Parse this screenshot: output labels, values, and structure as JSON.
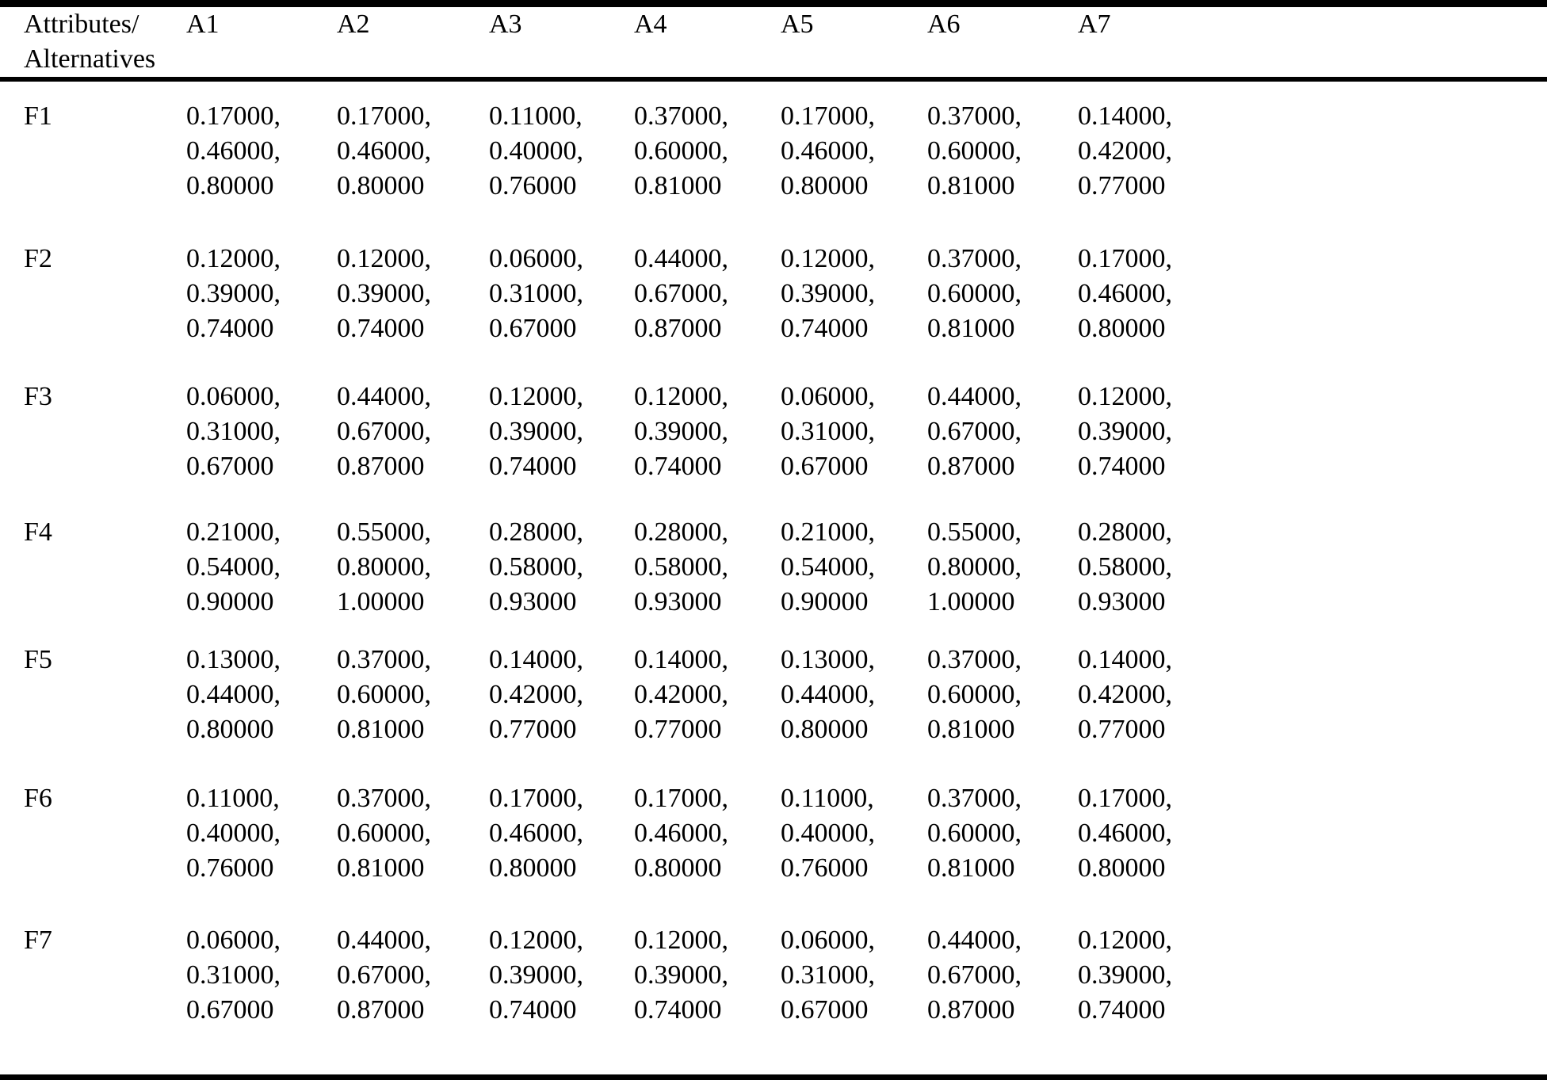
{
  "table": {
    "corner_label": "Attributes/\nAlternatives",
    "columns": [
      "A1",
      "A2",
      "A3",
      "A4",
      "A5",
      "A6",
      "A7"
    ],
    "rows": [
      {
        "label": "F1",
        "cells": [
          [
            "0.17000,",
            "0.46000,",
            "0.80000"
          ],
          [
            "0.17000,",
            "0.46000,",
            "0.80000"
          ],
          [
            "0.11000,",
            "0.40000,",
            "0.76000"
          ],
          [
            "0.37000,",
            "0.60000,",
            "0.81000"
          ],
          [
            "0.17000,",
            "0.46000,",
            "0.80000"
          ],
          [
            "0.37000,",
            "0.60000,",
            "0.81000"
          ],
          [
            "0.14000,",
            "0.42000,",
            "0.77000"
          ]
        ]
      },
      {
        "label": "F2",
        "cells": [
          [
            "0.12000,",
            "0.39000,",
            "0.74000"
          ],
          [
            "0.12000,",
            "0.39000,",
            "0.74000"
          ],
          [
            "0.06000,",
            "0.31000,",
            "0.67000"
          ],
          [
            "0.44000,",
            "0.67000,",
            "0.87000"
          ],
          [
            "0.12000,",
            "0.39000,",
            "0.74000"
          ],
          [
            "0.37000,",
            "0.60000,",
            "0.81000"
          ],
          [
            "0.17000,",
            "0.46000,",
            "0.80000"
          ]
        ]
      },
      {
        "label": "F3",
        "cells": [
          [
            "0.06000,",
            "0.31000,",
            "0.67000"
          ],
          [
            "0.44000,",
            "0.67000,",
            "0.87000"
          ],
          [
            "0.12000,",
            "0.39000,",
            "0.74000"
          ],
          [
            "0.12000,",
            "0.39000,",
            "0.74000"
          ],
          [
            "0.06000,",
            "0.31000,",
            "0.67000"
          ],
          [
            "0.44000,",
            "0.67000,",
            "0.87000"
          ],
          [
            "0.12000,",
            "0.39000,",
            "0.74000"
          ]
        ]
      },
      {
        "label": "F4",
        "cells": [
          [
            "0.21000,",
            "0.54000,",
            "0.90000"
          ],
          [
            "0.55000,",
            "0.80000,",
            "1.00000"
          ],
          [
            "0.28000,",
            "0.58000,",
            "0.93000"
          ],
          [
            "0.28000,",
            "0.58000,",
            "0.93000"
          ],
          [
            "0.21000,",
            "0.54000,",
            "0.90000"
          ],
          [
            "0.55000,",
            "0.80000,",
            "1.00000"
          ],
          [
            "0.28000,",
            "0.58000,",
            "0.93000"
          ]
        ]
      },
      {
        "label": "F5",
        "cells": [
          [
            "0.13000,",
            "0.44000,",
            "0.80000"
          ],
          [
            "0.37000,",
            "0.60000,",
            "0.81000"
          ],
          [
            "0.14000,",
            "0.42000,",
            "0.77000"
          ],
          [
            "0.14000,",
            "0.42000,",
            "0.77000"
          ],
          [
            "0.13000,",
            "0.44000,",
            "0.80000"
          ],
          [
            "0.37000,",
            "0.60000,",
            "0.81000"
          ],
          [
            "0.14000,",
            "0.42000,",
            "0.77000"
          ]
        ]
      },
      {
        "label": "F6",
        "cells": [
          [
            "0.11000,",
            "0.40000,",
            "0.76000"
          ],
          [
            "0.37000,",
            "0.60000,",
            "0.81000"
          ],
          [
            "0.17000,",
            "0.46000,",
            "0.80000"
          ],
          [
            "0.17000,",
            "0.46000,",
            "0.80000"
          ],
          [
            "0.11000,",
            "0.40000,",
            "0.76000"
          ],
          [
            "0.37000,",
            "0.60000,",
            "0.81000"
          ],
          [
            "0.17000,",
            "0.46000,",
            "0.80000"
          ]
        ]
      },
      {
        "label": "F7",
        "cells": [
          [
            "0.06000,",
            "0.31000,",
            "0.67000"
          ],
          [
            "0.44000,",
            "0.67000,",
            "0.87000"
          ],
          [
            "0.12000,",
            "0.39000,",
            "0.74000"
          ],
          [
            "0.12000,",
            "0.39000,",
            "0.74000"
          ],
          [
            "0.06000,",
            "0.31000,",
            "0.67000"
          ],
          [
            "0.44000,",
            "0.67000,",
            "0.87000"
          ],
          [
            "0.12000,",
            "0.39000,",
            "0.74000"
          ]
        ]
      }
    ]
  }
}
